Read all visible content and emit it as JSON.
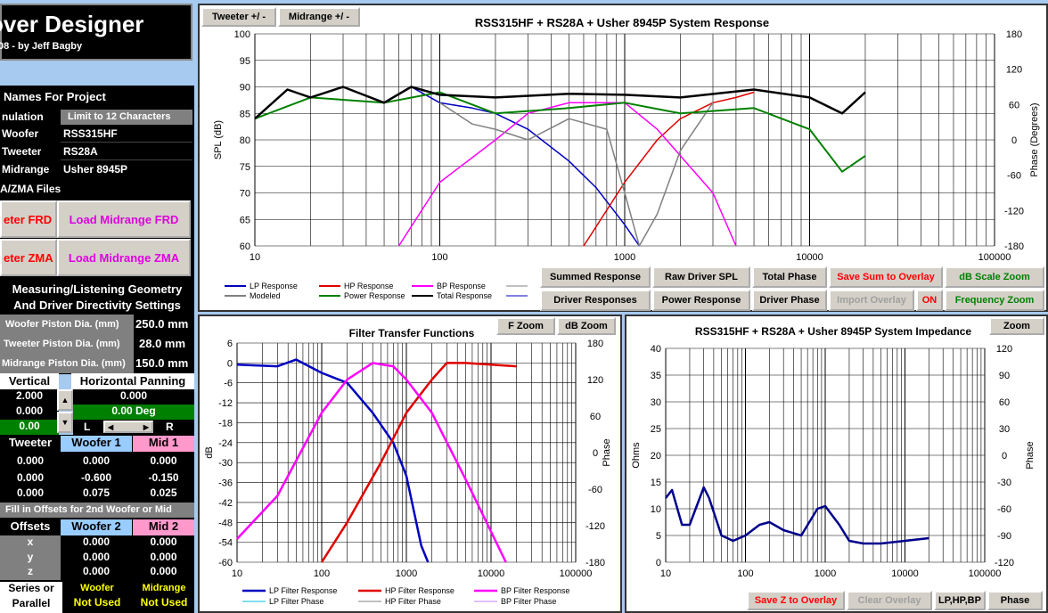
{
  "app": {
    "title": "over Designer",
    "subtitle": "08 - by Jeff Bagby"
  },
  "left": {
    "names_header": "Names For Project",
    "simulation_label": "nulation",
    "limit_label": "Limit to 12 Characters",
    "woofer_label": "Woofer",
    "woofer_value": "RSS315HF",
    "tweeter_label": "Tweeter",
    "tweeter_value": "RS28A",
    "midrange_label": "Midrange",
    "midrange_value": "Usher 8945P",
    "files_header": "A/ZMA Files",
    "btn_tweeter_frd": "eter FRD",
    "btn_mid_frd": "Load Midrange FRD",
    "btn_tweeter_zma": "eter ZMA",
    "btn_mid_zma": "Load Midrange ZMA",
    "geom_header1": "Measuring/Listening Geometry",
    "geom_header2": "And Driver Directivity Settings",
    "woofer_piston_label": "Woofer Piston Dia. (mm)",
    "woofer_piston_value": "250.0 mm",
    "tweeter_piston_label": "Tweeter Piston Dia. (mm)",
    "tweeter_piston_value": "28.0 mm",
    "mid_piston_label": "Midrange Piston Dia. (mm)",
    "mid_piston_value": "150.0 mm",
    "vertical_label": "Vertical",
    "horizontal_label": "Horizontal Panning",
    "vert_val1": "2.000",
    "vert_val2": "0.000",
    "vert_val3": "0.00",
    "horiz_val1": "0.000",
    "horiz_val2": "0.00 Deg",
    "horiz_L": "L",
    "horiz_R": "R",
    "tw_head": "Tweeter",
    "w1_head": "Woofer 1",
    "m1_head": "Mid 1",
    "tw_vals": [
      "0.000",
      "0.000",
      "0.000"
    ],
    "w1_vals": [
      "0.000",
      "-0.600",
      "0.075"
    ],
    "m1_vals": [
      "0.000",
      "-0.150",
      "0.025"
    ],
    "offsets_note": "Fill in Offsets for 2nd Woofer or Mid",
    "offsets_label": "Offsets",
    "w2_head": "Woofer 2",
    "m2_head": "Mid 2",
    "xyz": [
      "x",
      "y",
      "z"
    ],
    "w2_vals": [
      "0.000",
      "0.000",
      "0.000"
    ],
    "m2_vals": [
      "0.000",
      "0.000",
      "0.000"
    ],
    "series_label1": "Series or",
    "series_label2": "Parallel",
    "woofer_nu1": "Woofer",
    "woofer_nu2": "Not Used",
    "mid_nu1": "Midrange",
    "mid_nu2": "Not Used"
  },
  "top_chart": {
    "tab_tweeter": "Tweeter +/ -",
    "tab_midrange": "Midrange   +/ -",
    "title": "RSS315HF + RS28A + Usher 8945P  System Response",
    "ylabel": "SPL (dB)",
    "y2label": "Phase (Degrees)",
    "yticks": [
      "100",
      "95",
      "90",
      "85",
      "80",
      "75",
      "70",
      "65",
      "60"
    ],
    "y2ticks": [
      "180",
      "120",
      "60",
      "0",
      "-60",
      "-120",
      "-180"
    ],
    "xticks": [
      "10",
      "100",
      "1000",
      "10000",
      "100000"
    ],
    "legend": [
      "LP Response",
      "HP Response",
      "BP Response",
      "Modeled",
      "Power Response",
      "Total Response"
    ],
    "buttons": {
      "summed": "Summed Response",
      "raw": "Raw Driver SPL",
      "total_phase": "Total Phase",
      "save_sum": "Save Sum to Overlay",
      "db_scale": "dB Scale Zoom",
      "driver_resp": "Driver Responses",
      "power_resp": "Power Response",
      "driver_phase": "Driver Phase",
      "import": "Import Overlay",
      "on": "ON",
      "freq_zoom": "Frequency Zoom"
    }
  },
  "filter_chart": {
    "title": "Filter Transfer Functions",
    "fzoom": "F Zoom",
    "dbzoom": "dB Zoom",
    "ylabel": "dB",
    "y2label": "Phase",
    "yticks": [
      "6",
      "0",
      "-6",
      "-12",
      "-18",
      "-24",
      "-30",
      "-36",
      "-42",
      "-48",
      "-54",
      "-60"
    ],
    "y2ticks": [
      "180",
      "120",
      "60",
      "0",
      "-60",
      "-120",
      "-180"
    ],
    "xticks": [
      "10",
      "100",
      "1000",
      "10000",
      "100000"
    ],
    "legend": [
      "LP Filter Response",
      "HP Filter Response",
      "BP Filter Response",
      "LP Filter Phase",
      "HP Filter Phase",
      "BP Filter Phase"
    ]
  },
  "imp_chart": {
    "title": "RSS315HF + RS28A + Usher 8945P  System Impedance",
    "zoom": "Zoom",
    "ylabel": "Ohms",
    "y2label": "Phase",
    "yticks": [
      "40",
      "35",
      "30",
      "25",
      "20",
      "15",
      "10",
      "5",
      "0"
    ],
    "y2ticks": [
      "120",
      "90",
      "60",
      "30",
      "0",
      "-30",
      "-60",
      "-90",
      "-120"
    ],
    "xticks": [
      "10",
      "100",
      "1000",
      "10000",
      "100000"
    ],
    "buttons": {
      "save_z": "Save Z to Overlay",
      "clear": "Clear Overlay",
      "lphpbp": "LP,HP,BP",
      "phase": "Phase"
    }
  },
  "colors": {
    "lp": "#0000c0",
    "hp": "#e00000",
    "bp": "#ff00ff",
    "modeled": "#808080",
    "power": "#008000",
    "total": "#000000",
    "lpphase": "#00c0e0",
    "hpphase": "#808080",
    "bpphase": "#c080ff",
    "imp": "#00008b",
    "red_text": "#ff0000",
    "magenta_text": "#e000e0",
    "green_text": "#008000",
    "yellow": "#ffff00",
    "lightblue": "#99ccff",
    "pink": "#ff99cc"
  },
  "chart_data": [
    {
      "type": "line",
      "title": "RSS315HF + RS28A + Usher 8945P  System Response",
      "xscale": "log",
      "xlim": [
        10,
        100000
      ],
      "ylim": [
        60,
        100
      ],
      "y2lim": [
        -180,
        180
      ],
      "ylabel": "SPL (dB)",
      "y2label": "Phase (Degrees)",
      "series": [
        {
          "name": "LP Response",
          "x": [
            10,
            15,
            20,
            30,
            50,
            70,
            100,
            150,
            200,
            300,
            500,
            700,
            1000,
            1200
          ],
          "y": [
            84,
            89.5,
            88,
            90,
            87,
            90,
            87,
            86,
            85,
            82,
            76,
            71,
            64,
            60
          ]
        },
        {
          "name": "HP Response",
          "x": [
            600,
            1000,
            1500,
            2000,
            3000,
            4000,
            5000
          ],
          "y": [
            60,
            72,
            80,
            84,
            87,
            88,
            89
          ]
        },
        {
          "name": "BP Response",
          "x": [
            60,
            100,
            200,
            300,
            500,
            1000,
            1500,
            2000,
            3000,
            4000
          ],
          "y": [
            60,
            72,
            80,
            85,
            87,
            87,
            82,
            77,
            70,
            60
          ]
        },
        {
          "name": "Modeled",
          "x": [
            100,
            150,
            200,
            300,
            500,
            800,
            1000,
            1200,
            1500,
            2000,
            3000
          ],
          "y": [
            87,
            83,
            82,
            80,
            84,
            82,
            70,
            60,
            66,
            78,
            87
          ]
        },
        {
          "name": "Power Response",
          "x": [
            10,
            20,
            50,
            100,
            200,
            500,
            1000,
            2000,
            5000,
            10000,
            15000,
            20000
          ],
          "y": [
            84,
            88,
            87,
            89,
            85,
            86,
            87,
            85,
            86,
            82,
            74,
            77
          ]
        },
        {
          "name": "Total Response",
          "x": [
            10,
            15,
            20,
            30,
            50,
            70,
            100,
            200,
            500,
            1000,
            2000,
            5000,
            10000,
            15000,
            20000
          ],
          "y": [
            84,
            89.5,
            88,
            90,
            87,
            90,
            88.5,
            88,
            88.7,
            88.5,
            88,
            89.5,
            88,
            85,
            89
          ]
        }
      ]
    },
    {
      "type": "line",
      "title": "Filter Transfer Functions",
      "xscale": "log",
      "xlim": [
        10,
        100000
      ],
      "ylim": [
        -60,
        6
      ],
      "y2lim": [
        -180,
        180
      ],
      "ylabel": "dB",
      "y2label": "Phase",
      "series": [
        {
          "name": "LP Filter Response",
          "x": [
            10,
            30,
            50,
            100,
            200,
            400,
            700,
            1000,
            1500,
            1800
          ],
          "y": [
            -0.5,
            -1,
            1,
            -3,
            -6,
            -15,
            -24,
            -34,
            -55,
            -60
          ]
        },
        {
          "name": "HP Filter Response",
          "x": [
            100,
            200,
            500,
            1000,
            2000,
            3000,
            5000,
            20000
          ],
          "y": [
            -60,
            -48,
            -30,
            -15,
            -5,
            0,
            0,
            -1
          ]
        },
        {
          "name": "BP Filter Response",
          "x": [
            10,
            30,
            100,
            200,
            400,
            700,
            1000,
            2000,
            5000,
            15000
          ],
          "y": [
            -53,
            -40,
            -15,
            -5,
            0,
            -1,
            -5,
            -15,
            -35,
            -60
          ]
        }
      ]
    },
    {
      "type": "line",
      "title": "RSS315HF + RS28A + Usher 8945P  System Impedance",
      "xscale": "log",
      "xlim": [
        10,
        100000
      ],
      "ylim": [
        0,
        40
      ],
      "y2lim": [
        -120,
        120
      ],
      "ylabel": "Ohms",
      "y2label": "Phase",
      "series": [
        {
          "name": "Impedance",
          "x": [
            10,
            12,
            16,
            20,
            30,
            35,
            50,
            70,
            100,
            150,
            200,
            300,
            500,
            800,
            1000,
            1500,
            2000,
            3000,
            5000,
            10000,
            20000
          ],
          "y": [
            12,
            13.5,
            7,
            7,
            14,
            12,
            5,
            4,
            5,
            7,
            7.5,
            6,
            5,
            10,
            10.5,
            7,
            4,
            3.5,
            3.5,
            4,
            4.5
          ]
        }
      ]
    }
  ]
}
